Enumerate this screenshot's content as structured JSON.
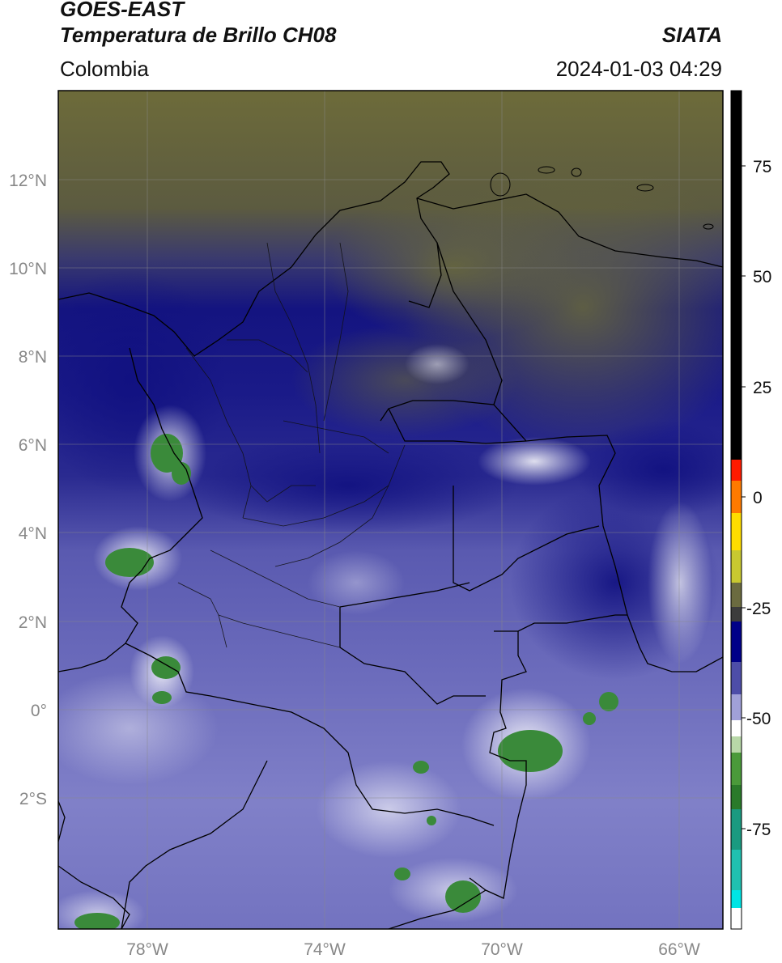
{
  "header": {
    "satellite": "GOES-EAST",
    "product": "Temperatura de Brillo CH08",
    "organization": "SIATA",
    "region": "Colombia",
    "timestamp": "2024-01-03 04:29"
  },
  "map": {
    "lon_range": [
      -80,
      -65
    ],
    "lat_range": [
      -5,
      14
    ],
    "lon_ticks": [
      "78°W",
      "74°W",
      "70°W",
      "66°W"
    ],
    "lat_ticks": [
      "12°N",
      "10°N",
      "8°N",
      "6°N",
      "4°N",
      "2°N",
      "0°",
      "2°S"
    ],
    "gridlines": true
  },
  "colorbar": {
    "ticks": [
      "75",
      "50",
      "25",
      "0",
      "-25",
      "-50",
      "-75"
    ],
    "range": [
      -97,
      90
    ],
    "colors": {
      "warm": "#000000",
      "hot": "#ff1a00",
      "orange": "#ff8800",
      "yellow": "#ffee00",
      "olive": "#6b6b30",
      "gray": "#4a4a4a",
      "navy": "#000088",
      "blue": "#5a5ab0",
      "white": "#ffffff",
      "green": "#2e8b2e",
      "teal": "#1fb89a",
      "cyan": "#00e5e5"
    }
  }
}
